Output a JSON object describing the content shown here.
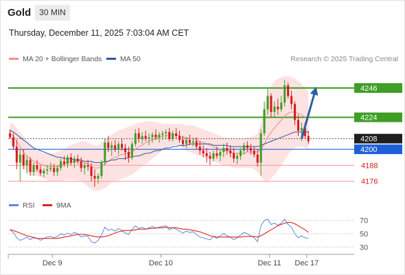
{
  "header": {
    "instrument": "Gold",
    "timeframe": "30 MIN",
    "datetime": "Thursday, December 11, 2025 7:03:04 AM CET",
    "copyright": "Research © 2025 Trading Central"
  },
  "legends": {
    "price": [
      {
        "name": "MA 20 + Bollinger Bands",
        "color": "#f4908c"
      },
      {
        "name": "MA 50",
        "color": "#2b579a"
      }
    ],
    "rsi": [
      {
        "name": "RSI",
        "color": "#5a8bd8"
      },
      {
        "name": "9MA",
        "color": "#e02020"
      }
    ]
  },
  "colors": {
    "bull": "#3f9e25",
    "bear": "#d61c1c",
    "resistance": "#3f9e25",
    "support": "#f4a0a0",
    "pivot": "#1e5fd8",
    "arrow": "#2e5f9f",
    "band_fill": "#fde2e2"
  },
  "chart_data": [
    {
      "type": "candlestick",
      "y_range": [
        4165,
        4262
      ],
      "x_range": [
        0,
        102
      ],
      "x_ticks": [
        {
          "x": 13,
          "label": "Dec 9"
        },
        {
          "x": 45,
          "label": "Dec 10"
        },
        {
          "x": 77,
          "label": "Dec 11"
        },
        {
          "x": 88,
          "label": "Dec 17"
        }
      ],
      "levels": [
        {
          "value": 4246,
          "label": "4246",
          "kind": "resistance"
        },
        {
          "value": 4224,
          "label": "4224",
          "kind": "resistance"
        },
        {
          "value": 4208,
          "label": "4208",
          "kind": "current"
        },
        {
          "value": 4200,
          "label": "4200",
          "kind": "pivot"
        },
        {
          "value": 4188,
          "label": "4188",
          "kind": "support"
        },
        {
          "value": 4176,
          "label": "4176",
          "kind": "support"
        }
      ],
      "arrow": {
        "from": {
          "x": 86,
          "y": 4208
        },
        "to": {
          "x": 90,
          "y": 4244
        }
      },
      "candles": [
        [
          4212,
          4215,
          4208,
          4209
        ],
        [
          4209,
          4212,
          4200,
          4202
        ],
        [
          4202,
          4207,
          4185,
          4190
        ],
        [
          4190,
          4200,
          4176,
          4196
        ],
        [
          4196,
          4200,
          4185,
          4188
        ],
        [
          4188,
          4195,
          4182,
          4192
        ],
        [
          4192,
          4194,
          4180,
          4183
        ],
        [
          4183,
          4190,
          4180,
          4188
        ],
        [
          4188,
          4192,
          4183,
          4185
        ],
        [
          4185,
          4188,
          4180,
          4182
        ],
        [
          4182,
          4186,
          4179,
          4184
        ],
        [
          4184,
          4188,
          4181,
          4185
        ],
        [
          4185,
          4190,
          4183,
          4186
        ],
        [
          4186,
          4189,
          4180,
          4183
        ],
        [
          4183,
          4188,
          4180,
          4186
        ],
        [
          4186,
          4193,
          4184,
          4191
        ],
        [
          4191,
          4195,
          4187,
          4189
        ],
        [
          4189,
          4196,
          4186,
          4194
        ],
        [
          4194,
          4197,
          4188,
          4190
        ],
        [
          4190,
          4195,
          4186,
          4193
        ],
        [
          4193,
          4196,
          4189,
          4191
        ],
        [
          4191,
          4194,
          4183,
          4186
        ],
        [
          4186,
          4190,
          4181,
          4188
        ],
        [
          4188,
          4192,
          4184,
          4187
        ],
        [
          4187,
          4190,
          4176,
          4180
        ],
        [
          4180,
          4185,
          4172,
          4178
        ],
        [
          4178,
          4182,
          4174,
          4180
        ],
        [
          4180,
          4192,
          4178,
          4190
        ],
        [
          4190,
          4208,
          4188,
          4205
        ],
        [
          4205,
          4210,
          4198,
          4201
        ],
        [
          4201,
          4206,
          4195,
          4203
        ],
        [
          4203,
          4207,
          4198,
          4200
        ],
        [
          4200,
          4206,
          4196,
          4204
        ],
        [
          4204,
          4208,
          4199,
          4201
        ],
        [
          4201,
          4204,
          4192,
          4198
        ],
        [
          4198,
          4202,
          4190,
          4194
        ],
        [
          4194,
          4206,
          4192,
          4204
        ],
        [
          4204,
          4215,
          4202,
          4212
        ],
        [
          4212,
          4216,
          4205,
          4208
        ],
        [
          4208,
          4213,
          4204,
          4210
        ],
        [
          4210,
          4214,
          4206,
          4208
        ],
        [
          4208,
          4212,
          4203,
          4209
        ],
        [
          4209,
          4213,
          4205,
          4211
        ],
        [
          4211,
          4215,
          4207,
          4209
        ],
        [
          4209,
          4213,
          4205,
          4211
        ],
        [
          4211,
          4214,
          4207,
          4212
        ],
        [
          4212,
          4215,
          4208,
          4213
        ],
        [
          4213,
          4216,
          4206,
          4208
        ],
        [
          4208,
          4214,
          4206,
          4212
        ],
        [
          4212,
          4216,
          4208,
          4210
        ],
        [
          4210,
          4214,
          4205,
          4207
        ],
        [
          4207,
          4210,
          4202,
          4204
        ],
        [
          4204,
          4209,
          4201,
          4207
        ],
        [
          4207,
          4211,
          4203,
          4205
        ],
        [
          4205,
          4209,
          4202,
          4206
        ],
        [
          4206,
          4209,
          4200,
          4202
        ],
        [
          4202,
          4206,
          4196,
          4199
        ],
        [
          4199,
          4203,
          4194,
          4197
        ],
        [
          4197,
          4201,
          4190,
          4195
        ],
        [
          4195,
          4198,
          4188,
          4193
        ],
        [
          4193,
          4199,
          4191,
          4197
        ],
        [
          4197,
          4202,
          4193,
          4195
        ],
        [
          4195,
          4200,
          4191,
          4198
        ],
        [
          4198,
          4204,
          4194,
          4201
        ],
        [
          4201,
          4205,
          4196,
          4199
        ],
        [
          4199,
          4203,
          4194,
          4197
        ],
        [
          4197,
          4201,
          4190,
          4193
        ],
        [
          4193,
          4197,
          4189,
          4195
        ],
        [
          4195,
          4201,
          4192,
          4199
        ],
        [
          4199,
          4205,
          4196,
          4203
        ],
        [
          4203,
          4206,
          4198,
          4201
        ],
        [
          4201,
          4204,
          4196,
          4199
        ],
        [
          4199,
          4202,
          4194,
          4196
        ],
        [
          4196,
          4200,
          4187,
          4190
        ],
        [
          4190,
          4215,
          4180,
          4212
        ],
        [
          4212,
          4236,
          4210,
          4230
        ],
        [
          4230,
          4246,
          4226,
          4240
        ],
        [
          4240,
          4242,
          4224,
          4228
        ],
        [
          4228,
          4236,
          4224,
          4232
        ],
        [
          4232,
          4238,
          4226,
          4230
        ],
        [
          4230,
          4240,
          4228,
          4235
        ],
        [
          4235,
          4252,
          4232,
          4248
        ],
        [
          4248,
          4250,
          4238,
          4240
        ],
        [
          4240,
          4244,
          4230,
          4234
        ],
        [
          4234,
          4236,
          4218,
          4222
        ],
        [
          4222,
          4226,
          4210,
          4214
        ],
        [
          4214,
          4220,
          4206,
          4216
        ],
        [
          4216,
          4220,
          4208,
          4210
        ],
        [
          4210,
          4214,
          4204,
          4206
        ]
      ],
      "ma20": [
        4212,
        4210,
        4206,
        4202,
        4198,
        4195,
        4193,
        4191,
        4190,
        4189,
        4188,
        4187,
        4187,
        4187,
        4187,
        4188,
        4189,
        4190,
        4190,
        4191,
        4191,
        4191,
        4190,
        4189,
        4187,
        4186,
        4186,
        4187,
        4189,
        4191,
        4193,
        4194,
        4195,
        4196,
        4197,
        4197,
        4198,
        4200,
        4202,
        4203,
        4205,
        4206,
        4207,
        4208,
        4209,
        4210,
        4210,
        4211,
        4211,
        4211,
        4210,
        4209,
        4209,
        4208,
        4208,
        4207,
        4206,
        4205,
        4204,
        4203,
        4202,
        4201,
        4200,
        4199,
        4199,
        4198,
        4197,
        4197,
        4197,
        4197,
        4198,
        4198,
        4198,
        4198,
        4200,
        4204,
        4209,
        4213,
        4216,
        4219,
        4222,
        4225,
        4227,
        4228,
        4228,
        4227,
        4226,
        4224,
        4222
      ],
      "bb_upper": [
        4220,
        4219,
        4216,
        4213,
        4210,
        4207,
        4204,
        4201,
        4199,
        4198,
        4197,
        4197,
        4197,
        4197,
        4198,
        4199,
        4200,
        4202,
        4203,
        4204,
        4205,
        4206,
        4206,
        4205,
        4204,
        4203,
        4203,
        4205,
        4207,
        4209,
        4211,
        4213,
        4214,
        4215,
        4216,
        4217,
        4218,
        4219,
        4220,
        4220,
        4221,
        4221,
        4221,
        4220,
        4220,
        4219,
        4219,
        4219,
        4219,
        4219,
        4219,
        4219,
        4218,
        4218,
        4218,
        4217,
        4216,
        4215,
        4214,
        4213,
        4212,
        4211,
        4210,
        4209,
        4209,
        4208,
        4208,
        4208,
        4208,
        4208,
        4209,
        4209,
        4210,
        4212,
        4220,
        4232,
        4242,
        4248,
        4251,
        4253,
        4254,
        4255,
        4255,
        4254,
        4253,
        4251,
        4249,
        4246,
        4243
      ],
      "bb_lower": [
        4205,
        4201,
        4195,
        4190,
        4186,
        4183,
        4181,
        4180,
        4180,
        4179,
        4178,
        4177,
        4176,
        4176,
        4176,
        4176,
        4177,
        4177,
        4177,
        4177,
        4177,
        4176,
        4174,
        4172,
        4170,
        4169,
        4169,
        4170,
        4171,
        4173,
        4175,
        4176,
        4177,
        4178,
        4179,
        4180,
        4181,
        4183,
        4185,
        4187,
        4189,
        4191,
        4193,
        4195,
        4197,
        4199,
        4200,
        4202,
        4203,
        4203,
        4202,
        4200,
        4199,
        4198,
        4197,
        4196,
        4195,
        4194,
        4193,
        4192,
        4191,
        4190,
        4189,
        4188,
        4188,
        4187,
        4186,
        4186,
        4186,
        4186,
        4186,
        4186,
        4185,
        4183,
        4180,
        4176,
        4176,
        4178,
        4181,
        4184,
        4188,
        4192,
        4196,
        4199,
        4201,
        4202,
        4202,
        4201,
        4200
      ],
      "ma50": [
        4214,
        4213,
        4211,
        4209,
        4207,
        4205,
        4203,
        4201,
        4200,
        4199,
        4198,
        4197,
        4196,
        4195,
        4194,
        4194,
        4193,
        4193,
        4193,
        4192,
        4192,
        4192,
        4191,
        4191,
        4191,
        4190,
        4190,
        4190,
        4191,
        4191,
        4192,
        4192,
        4193,
        4193,
        4193,
        4194,
        4194,
        4195,
        4195,
        4196,
        4197,
        4197,
        4198,
        4199,
        4199,
        4200,
        4201,
        4201,
        4202,
        4202,
        4203,
        4203,
        4203,
        4204,
        4204,
        4204,
        4204,
        4204,
        4204,
        4204,
        4203,
        4203,
        4203,
        4203,
        4203,
        4202,
        4202,
        4202,
        4202,
        4202,
        4202,
        4202,
        4202,
        4202,
        4203,
        4204,
        4205,
        4206,
        4207,
        4208,
        4209,
        4210,
        4211,
        4212,
        4213,
        4213,
        4213,
        4213,
        4213
      ]
    },
    {
      "type": "line",
      "name": "RSI",
      "y_range": [
        22,
        78
      ],
      "y_ticks": [
        70,
        50,
        30
      ],
      "rsi": [
        56,
        52,
        44,
        40,
        42,
        45,
        41,
        45,
        43,
        40,
        43,
        45,
        46,
        44,
        46,
        50,
        48,
        51,
        49,
        52,
        50,
        45,
        47,
        46,
        38,
        36,
        40,
        48,
        60,
        55,
        57,
        54,
        58,
        55,
        51,
        49,
        57,
        62,
        58,
        60,
        57,
        59,
        61,
        58,
        60,
        61,
        62,
        56,
        59,
        57,
        54,
        51,
        54,
        52,
        53,
        49,
        45,
        44,
        42,
        41,
        46,
        43,
        47,
        50,
        47,
        45,
        41,
        44,
        48,
        52,
        50,
        47,
        44,
        38,
        62,
        70,
        72,
        64,
        66,
        63,
        66,
        72,
        64,
        60,
        50,
        44,
        47,
        44,
        43
      ],
      "ma9": [
        56,
        55,
        53,
        51,
        49,
        47,
        46,
        44,
        43,
        43,
        43,
        43,
        43,
        43,
        43,
        44,
        45,
        46,
        47,
        48,
        49,
        49,
        49,
        48,
        47,
        46,
        45,
        45,
        46,
        47,
        49,
        51,
        53,
        54,
        55,
        55,
        55,
        56,
        57,
        57,
        57,
        58,
        58,
        59,
        59,
        59,
        60,
        59,
        59,
        59,
        58,
        57,
        57,
        56,
        55,
        54,
        53,
        51,
        49,
        47,
        46,
        45,
        45,
        45,
        45,
        45,
        45,
        45,
        45,
        46,
        46,
        46,
        46,
        45,
        47,
        50,
        53,
        56,
        59,
        62,
        64,
        66,
        67,
        67,
        65,
        62,
        59,
        56,
        52
      ]
    }
  ]
}
